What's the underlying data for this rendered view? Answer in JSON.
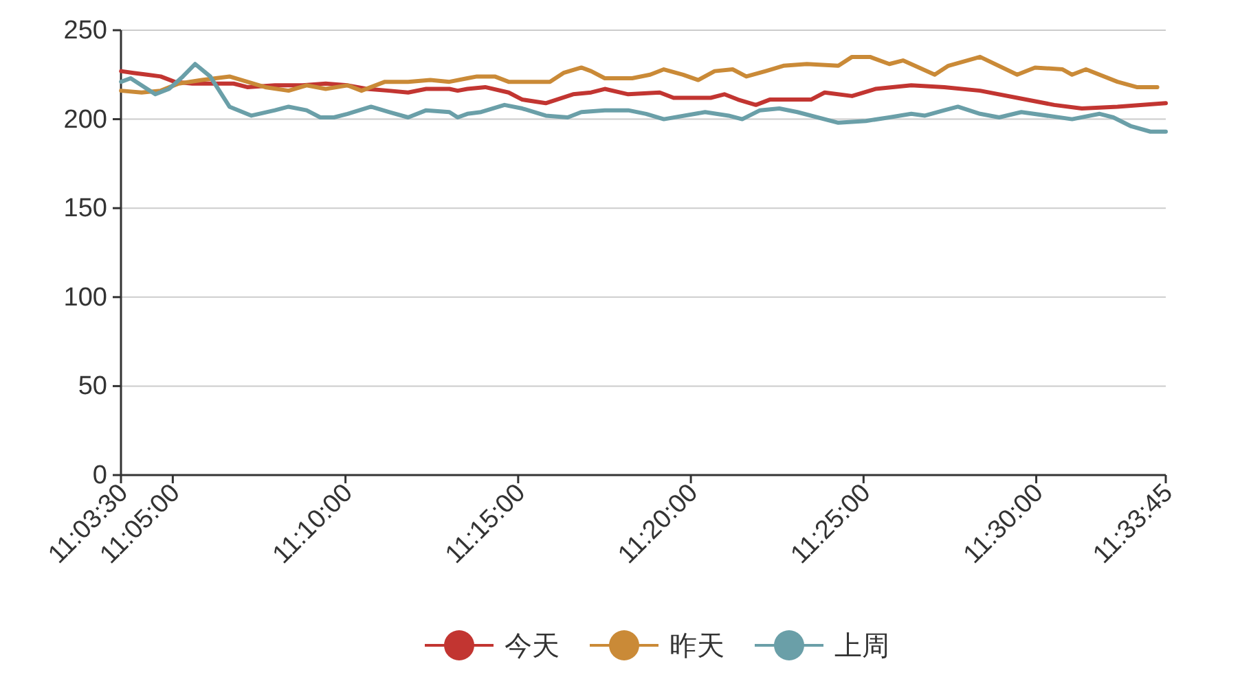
{
  "chart_data": {
    "type": "line",
    "legend": "bottom",
    "grid": "y",
    "line_style": "solid",
    "xlim": [
      11.058333,
      11.5625
    ],
    "xticks": [
      {
        "value": 11.058333,
        "label": "11:03:30"
      },
      {
        "value": 11.083333,
        "label": "11:05:00"
      },
      {
        "value": 11.166667,
        "label": "11:10:00"
      },
      {
        "value": 11.25,
        "label": "11:15:00"
      },
      {
        "value": 11.333333,
        "label": "11:20:00"
      },
      {
        "value": 11.416667,
        "label": "11:25:00"
      },
      {
        "value": 11.5,
        "label": "11:30:00"
      },
      {
        "value": 11.5625,
        "label": "11:33:45"
      }
    ],
    "ylim": [
      0,
      250
    ],
    "yticks": [
      0,
      50,
      100,
      150,
      200,
      250
    ],
    "series": [
      {
        "name": "今天",
        "color": "#c23531",
        "x": [
          11.0584,
          11.0643,
          11.0709,
          11.0775,
          11.0842,
          11.0928,
          11.1041,
          11.1127,
          11.1193,
          11.1326,
          11.1459,
          11.1571,
          11.1677,
          11.177,
          11.1876,
          11.1969,
          11.2056,
          11.2168,
          11.2208,
          11.2255,
          11.2341,
          11.2454,
          11.252,
          11.2633,
          11.2765,
          11.2852,
          11.2918,
          11.3031,
          11.3183,
          11.325,
          11.3429,
          11.3495,
          11.3561,
          11.3647,
          11.3714,
          11.3827,
          11.3913,
          11.3979,
          11.4111,
          11.4224,
          11.4397,
          11.4556,
          11.4729,
          11.4908,
          11.5087,
          11.522,
          11.5392,
          11.5625
        ],
        "values": [
          227,
          226,
          225,
          224,
          221,
          220,
          220,
          220,
          218,
          219,
          219,
          220,
          219,
          217,
          216,
          215,
          217,
          217,
          216,
          217,
          218,
          215,
          211,
          209,
          214,
          215,
          217,
          214,
          215,
          212,
          212,
          214,
          211,
          208,
          211,
          211,
          211,
          215,
          213,
          217,
          219,
          218,
          216,
          212,
          208,
          206,
          207,
          209
        ]
      },
      {
        "name": "昨天",
        "color": "#ca8a37",
        "x": [
          11.0584,
          11.0683,
          11.0775,
          11.0862,
          11.0974,
          11.1107,
          11.1193,
          11.1279,
          11.1392,
          11.1479,
          11.1571,
          11.1677,
          11.1744,
          11.1857,
          11.1969,
          11.2076,
          11.2168,
          11.2255,
          11.2301,
          11.2387,
          11.2454,
          11.252,
          11.2653,
          11.2719,
          11.2805,
          11.2852,
          11.2918,
          11.305,
          11.3137,
          11.3203,
          11.3296,
          11.3369,
          11.3448,
          11.3535,
          11.3601,
          11.3694,
          11.378,
          11.3893,
          11.4045,
          11.4111,
          11.4198,
          11.4291,
          11.4357,
          11.451,
          11.4576,
          11.4729,
          11.4908,
          11.4994,
          11.5127,
          11.5173,
          11.524,
          11.5392,
          11.5485,
          11.5584
        ],
        "values": [
          216,
          215,
          216,
          220,
          222,
          224,
          221,
          218,
          216,
          219,
          217,
          219,
          216,
          221,
          221,
          222,
          221,
          223,
          224,
          224,
          221,
          221,
          221,
          226,
          229,
          227,
          223,
          223,
          225,
          228,
          225,
          222,
          227,
          228,
          224,
          227,
          230,
          231,
          230,
          235,
          235,
          231,
          233,
          225,
          230,
          235,
          225,
          229,
          228,
          225,
          228,
          221,
          218,
          218
        ]
      },
      {
        "name": "上周",
        "color": "#6a9fa8",
        "x": [
          11.0584,
          11.063,
          11.0749,
          11.0815,
          11.0882,
          11.0941,
          11.1014,
          11.1107,
          11.1213,
          11.1326,
          11.1392,
          11.1479,
          11.1545,
          11.1611,
          11.1677,
          11.179,
          11.1876,
          11.1969,
          11.2056,
          11.2168,
          11.2208,
          11.2255,
          11.2321,
          11.2434,
          11.252,
          11.2633,
          11.2739,
          11.2805,
          11.2918,
          11.3031,
          11.3117,
          11.3203,
          11.3402,
          11.3515,
          11.3581,
          11.3667,
          11.376,
          11.3847,
          11.4045,
          11.4178,
          11.4291,
          11.4397,
          11.4463,
          11.4556,
          11.4622,
          11.4729,
          11.4821,
          11.4928,
          11.5173,
          11.5306,
          11.5372,
          11.5458,
          11.5551,
          11.5625
        ],
        "values": [
          221,
          223,
          214,
          217,
          224,
          231,
          224,
          207,
          202,
          205,
          207,
          205,
          201,
          201,
          203,
          207,
          204,
          201,
          205,
          204,
          201,
          203,
          204,
          208,
          206,
          202,
          201,
          204,
          205,
          205,
          203,
          200,
          204,
          202,
          200,
          205,
          206,
          204,
          198,
          199,
          201,
          203,
          202,
          205,
          207,
          203,
          201,
          204,
          200,
          203,
          201,
          196,
          193,
          193
        ]
      }
    ]
  }
}
